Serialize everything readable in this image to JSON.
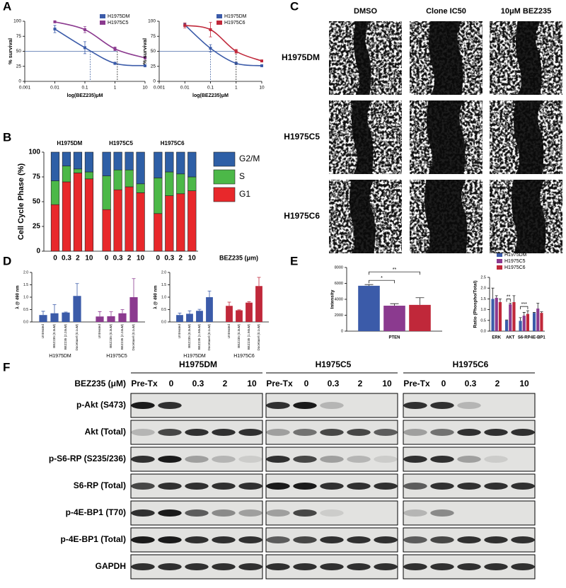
{
  "panel_labels": [
    "A",
    "B",
    "C",
    "D",
    "E",
    "F"
  ],
  "chart_data": [
    {
      "type": "line",
      "xscale": "log",
      "x": [
        0.01,
        0.1,
        1,
        10
      ],
      "xlim": [
        0.001,
        10
      ],
      "xticks": [
        0.001,
        0.01,
        0.1,
        1,
        10
      ],
      "ylim": [
        0,
        100
      ],
      "yticks": [
        0,
        25,
        50,
        75,
        100
      ],
      "x_label": "log(BEZ235)μM",
      "y_label": "% survival",
      "reference_y": 50,
      "series": [
        {
          "name": "H1975DM",
          "color": "#3b5ba9",
          "values": [
            87,
            56,
            30,
            26
          ],
          "errors": [
            6,
            10,
            2,
            1
          ],
          "ic50": 0.15
        },
        {
          "name": "H1975C5",
          "color": "#8b3a8f",
          "values": [
            99,
            86,
            54,
            39
          ],
          "errors": [
            1,
            5,
            3,
            2
          ],
          "ic50": 1.2
        }
      ]
    },
    {
      "type": "line",
      "xscale": "log",
      "x": [
        0.01,
        0.1,
        1,
        10
      ],
      "xlim": [
        0.001,
        10
      ],
      "xticks": [
        0.001,
        0.01,
        0.1,
        1,
        10
      ],
      "ylim": [
        0,
        100
      ],
      "yticks": [
        0,
        25,
        50,
        75,
        100
      ],
      "x_label": "log(BEZ235)μM",
      "y_label": "% survival",
      "reference_y": 50,
      "series": [
        {
          "name": "H1975DM",
          "color": "#3b5ba9",
          "values": [
            94,
            55,
            30,
            26
          ],
          "errors": [
            3,
            6,
            2,
            1
          ],
          "ic50": 0.1
        },
        {
          "name": "H1975C6",
          "color": "#c0283a",
          "values": [
            93,
            86,
            50,
            34
          ],
          "errors": [
            4,
            12,
            3,
            1
          ],
          "ic50": 1
        }
      ]
    },
    {
      "type": "stacked-bar",
      "groups": [
        "H1975DM",
        "H1975C5",
        "H1975C6"
      ],
      "categories": [
        "0",
        "0.3",
        "2",
        "10",
        "0",
        "0.3",
        "2",
        "10",
        "0",
        "0.3",
        "2",
        "10"
      ],
      "x_label": "BEZ235 (μm)",
      "y_label": "Cell Cycle Phase (%)",
      "ylim": [
        0,
        100
      ],
      "yticks": [
        0,
        25,
        50,
        75,
        100
      ],
      "series": [
        {
          "name": "G1",
          "color": "#e8282b",
          "values": [
            47,
            70,
            79,
            73,
            42,
            62,
            65,
            59,
            38,
            56,
            58,
            61
          ]
        },
        {
          "name": "S",
          "color": "#4cb848",
          "values": [
            24,
            16,
            4,
            7,
            34,
            20,
            17,
            9,
            36,
            24,
            20,
            14
          ]
        },
        {
          "name": "G2/M",
          "color": "#2e5fa6",
          "values": [
            29,
            14,
            17,
            20,
            24,
            18,
            18,
            32,
            26,
            20,
            22,
            25
          ]
        }
      ]
    },
    {
      "type": "bar",
      "groups": [
        "H1975DM",
        "H1975C5"
      ],
      "group_colors": [
        "#3b5ba9",
        "#8b3a8f"
      ],
      "categories": [
        "Untreated",
        "BEZ235 (0.3uM)",
        "BEZ235 (2.24uM)",
        "Docetaxel (0.1uM)",
        "Untreated",
        "BEZ235 (0.3uM)",
        "BEZ235 (2.24uM)",
        "Docetaxel (0.1uM)"
      ],
      "values": [
        0.28,
        0.35,
        0.38,
        1.05,
        0.22,
        0.23,
        0.35,
        1.0
      ],
      "errors": [
        0.15,
        0.35,
        0.02,
        0.5,
        0.2,
        0.18,
        0.15,
        0.75
      ],
      "y_label": "λ @ 490 nm",
      "ylim": [
        0,
        2
      ],
      "yticks": [
        {
          "value": 0,
          "label": "0.0"
        },
        {
          "value": 0.5,
          "label": "0.5"
        },
        {
          "value": 1,
          "label": "1.0"
        },
        {
          "value": 1.5,
          "label": "1.5"
        },
        {
          "value": 2,
          "label": "2.0"
        }
      ]
    },
    {
      "type": "bar",
      "groups": [
        "H1975DM",
        "H1975C6"
      ],
      "group_colors": [
        "#3b5ba9",
        "#c0283a"
      ],
      "categories": [
        "Untreated",
        "BEZ235 (0.3uM)",
        "BEZ235 (1.94uM)",
        "Docetaxel (0.1uM)",
        "Untreated",
        "BEZ235 (0.3uM)",
        "BEZ235 (1.94uM)",
        "Docetaxel (0.1uM)"
      ],
      "values": [
        0.28,
        0.33,
        0.45,
        1.0,
        0.65,
        0.47,
        0.78,
        1.45
      ],
      "errors": [
        0.08,
        0.12,
        0.06,
        0.25,
        0.15,
        0.02,
        0.04,
        0.35
      ],
      "y_label": "λ @ 490 nm",
      "ylim": [
        0,
        2
      ],
      "yticks": [
        {
          "value": 0,
          "label": "0.0"
        },
        {
          "value": 0.5,
          "label": "0.5"
        },
        {
          "value": 1,
          "label": "1.0"
        },
        {
          "value": 1.5,
          "label": "1.5"
        },
        {
          "value": 2,
          "label": "2.0"
        }
      ]
    },
    {
      "type": "bar",
      "categories": [
        "PTEN"
      ],
      "y_label": "Intensity",
      "ylim": [
        0,
        8000
      ],
      "yticks": [
        0,
        2000,
        4000,
        6000,
        8000
      ],
      "annotations": [
        "*",
        "**"
      ],
      "series": [
        {
          "color": "#3b5ba9",
          "values": [
            5700
          ],
          "errors": [
            150
          ]
        },
        {
          "color": "#8b3a8f",
          "values": [
            3200
          ],
          "errors": [
            250
          ]
        },
        {
          "color": "#c0283a",
          "values": [
            3300
          ],
          "errors": [
            900
          ]
        }
      ]
    },
    {
      "type": "bar",
      "legend": true,
      "categories": [
        "ERK",
        "AKT",
        "S6-RP",
        "4E-BP1"
      ],
      "y_label": "Ratio (Phospho/Total)",
      "ylim": [
        0,
        2.5
      ],
      "yticks": [
        {
          "value": 0,
          "label": "0.0"
        },
        {
          "value": 0.5,
          "label": "0.5"
        },
        {
          "value": 1,
          "label": "1.0"
        },
        {
          "value": 1.5,
          "label": "1.5"
        },
        {
          "value": 2,
          "label": "2.0"
        },
        {
          "value": 2.5,
          "label": "2.5"
        }
      ],
      "annotations": [
        "**",
        "***"
      ],
      "series": [
        {
          "name": "H1975DM",
          "color": "#3b5ba9",
          "values": [
            1.5,
            0.5,
            0.48,
            0.85
          ],
          "errors": [
            0.5,
            0.02,
            0.15,
            0.02
          ]
        },
        {
          "name": "H1975C5",
          "color": "#8b3a8f",
          "values": [
            1.55,
            1.25,
            0.72,
            1.05
          ],
          "errors": [
            0.1,
            0.05,
            0.15,
            0.25
          ]
        },
        {
          "name": "H1975C6",
          "color": "#c0283a",
          "values": [
            1.35,
            1.35,
            0.8,
            0.85
          ],
          "errors": [
            0.15,
            0.3,
            0.15,
            0.05
          ]
        }
      ]
    }
  ],
  "wound_healing": {
    "columns": [
      "DMSO",
      "Clone IC50",
      "10μM BEZ235"
    ],
    "rows": [
      "H1975DM",
      "H1975C5",
      "H1975C6"
    ]
  },
  "western_blot": {
    "groups": [
      "H1975DM",
      "H1975C5",
      "H1975C6"
    ],
    "treatment_label": "BEZ235 (μM)",
    "lanes": [
      "Pre-Tx",
      "0",
      "0.3",
      "2",
      "10"
    ],
    "rows": [
      "p-Akt (S473)",
      "Akt (Total)",
      "p-S6-RP (S235/236)",
      "S6-RP (Total)",
      "p-4E-BP1 (T70)",
      "p-4E-BP1 (Total)",
      "GAPDH"
    ]
  }
}
